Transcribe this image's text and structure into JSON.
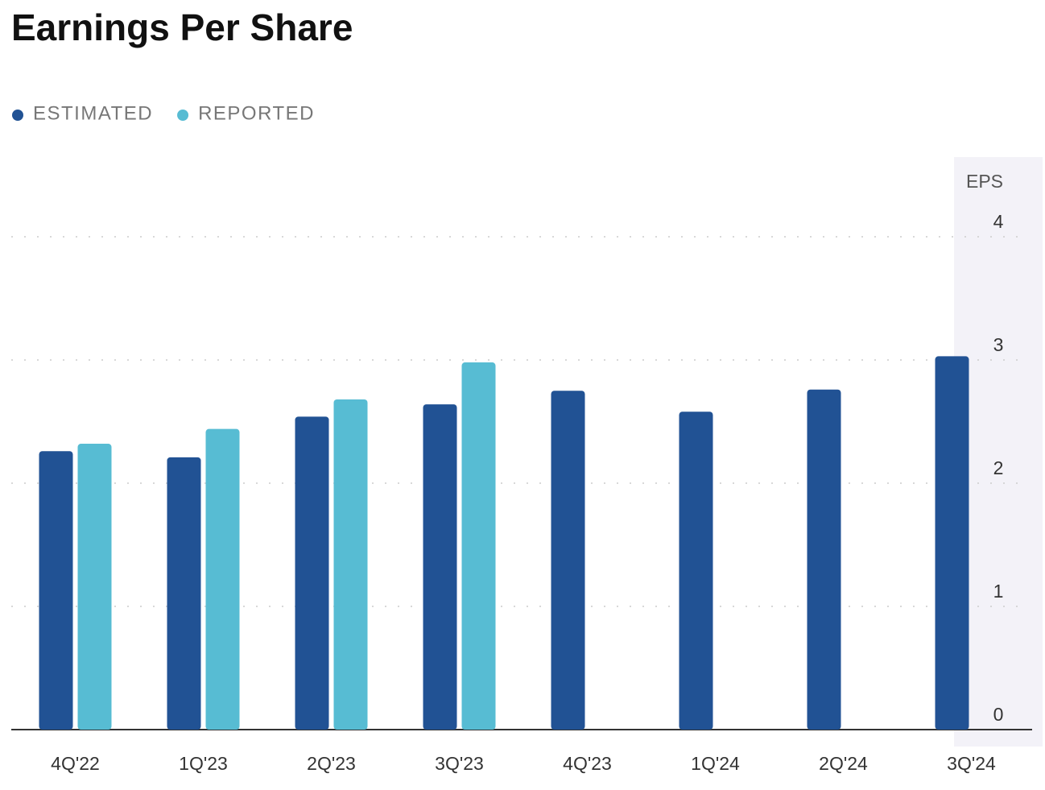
{
  "chart_data": {
    "type": "bar",
    "title": "Earnings Per Share",
    "y_axis_label": "EPS",
    "categories": [
      "4Q'22",
      "1Q'23",
      "2Q'23",
      "3Q'23",
      "4Q'23",
      "1Q'24",
      "2Q'24",
      "3Q'24"
    ],
    "series": [
      {
        "name": "ESTIMATED",
        "color": "#215294",
        "values": [
          2.26,
          2.21,
          2.54,
          2.64,
          2.75,
          2.58,
          2.76,
          3.03
        ]
      },
      {
        "name": "REPORTED",
        "color": "#57bcd3",
        "values": [
          2.32,
          2.44,
          2.68,
          2.98,
          null,
          null,
          null,
          null
        ]
      }
    ],
    "ylim": [
      0,
      4
    ],
    "yticks": [
      0,
      1,
      2,
      3,
      4
    ],
    "grid": true
  }
}
